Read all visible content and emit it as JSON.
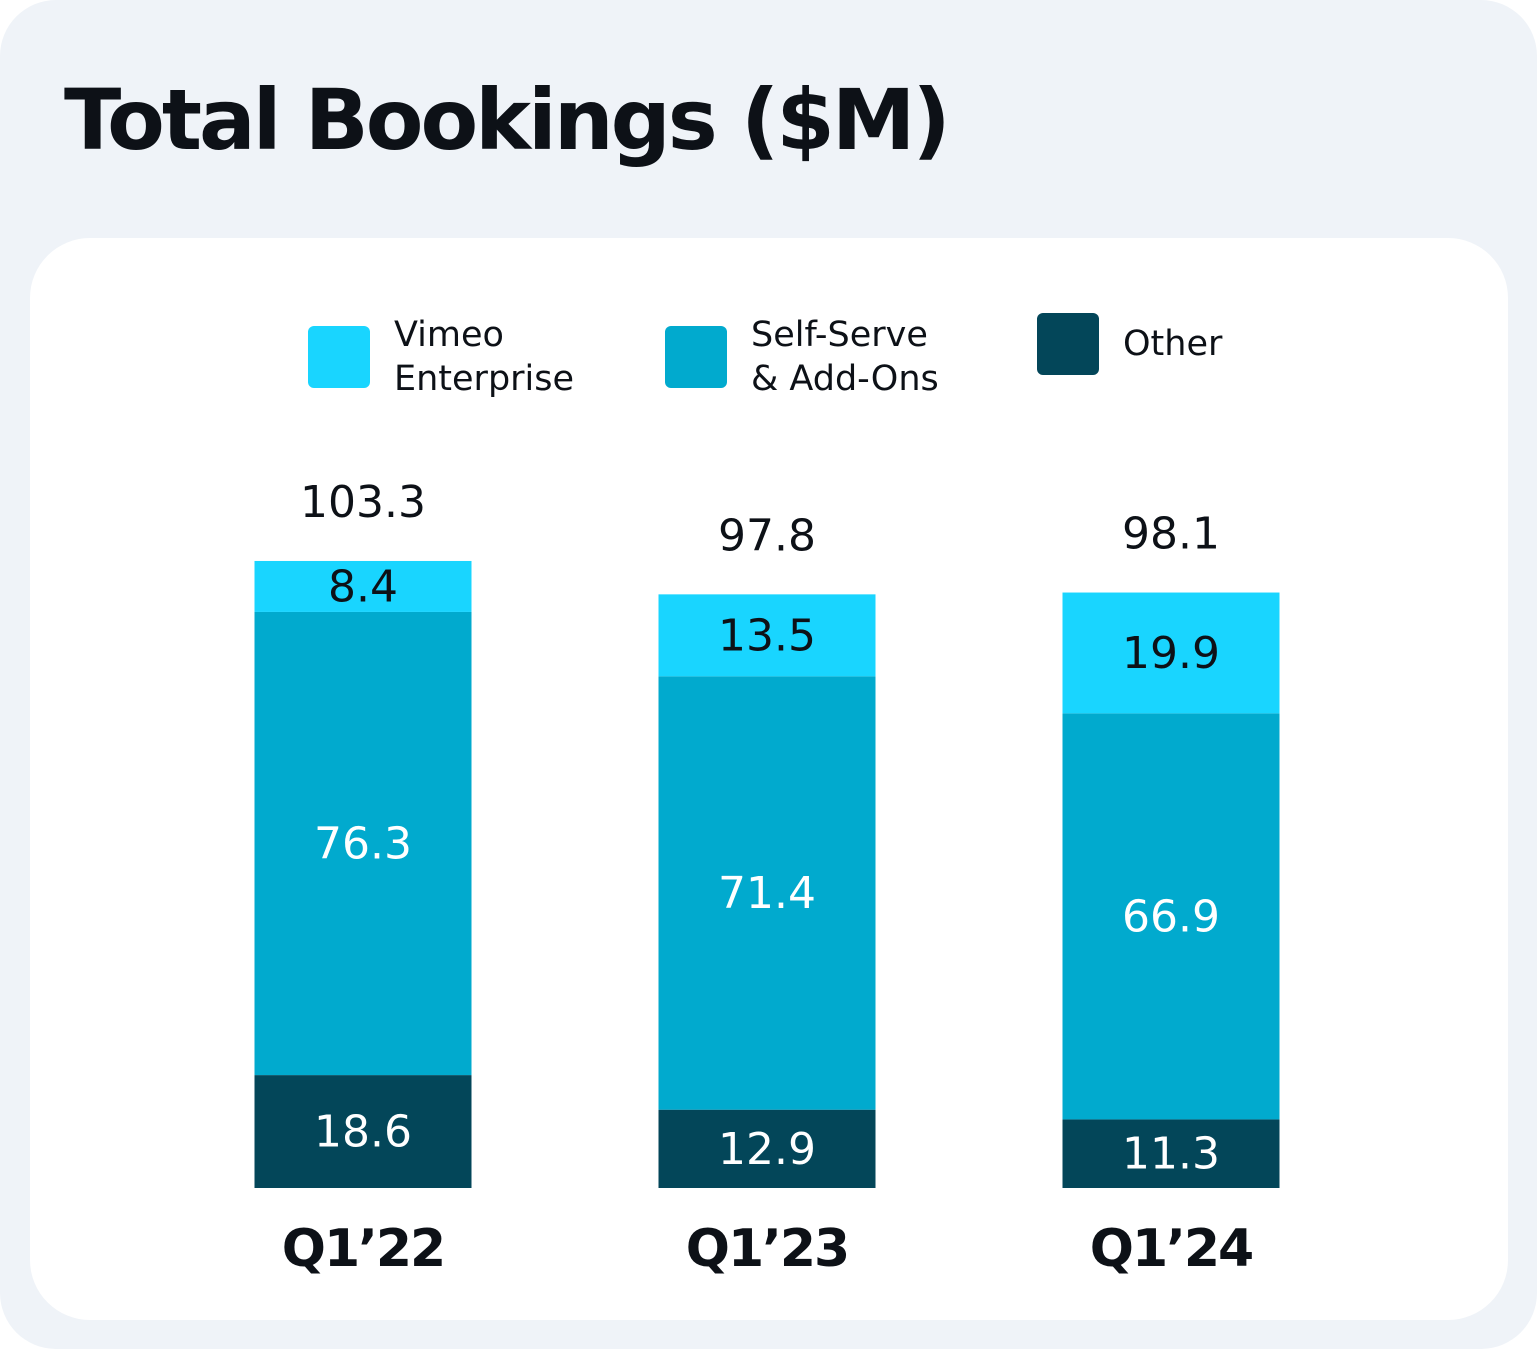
{
  "chart_data": {
    "type": "bar",
    "stacked": true,
    "title": "Total Bookings ($M)",
    "categories": [
      "Q1’22",
      "Q1’23",
      "Q1’24"
    ],
    "totals": [
      103.3,
      97.8,
      98.1
    ],
    "series": [
      {
        "name": "Other",
        "legend_lines": [
          "Other"
        ],
        "color": "#034659",
        "label_color": "#ffffff",
        "values": [
          18.6,
          12.9,
          11.3
        ]
      },
      {
        "name": "Self-Serve & Add-Ons",
        "legend_lines": [
          "Self-Serve",
          "& Add-Ons"
        ],
        "color": "#01aace",
        "label_color": "#ffffff",
        "values": [
          76.3,
          71.4,
          66.9
        ]
      },
      {
        "name": "Vimeo Enterprise",
        "legend_lines": [
          "Vimeo",
          "Enterprise"
        ],
        "color": "#19d5ff",
        "label_color": "#0d1117",
        "values": [
          8.4,
          13.5,
          19.9
        ]
      }
    ],
    "legend_order": [
      "Vimeo Enterprise",
      "Self-Serve & Add-Ons",
      "Other"
    ],
    "xlabel": "",
    "ylabel": "",
    "ylim": [
      0,
      103.3
    ],
    "grid": false,
    "legend_position": "top"
  }
}
